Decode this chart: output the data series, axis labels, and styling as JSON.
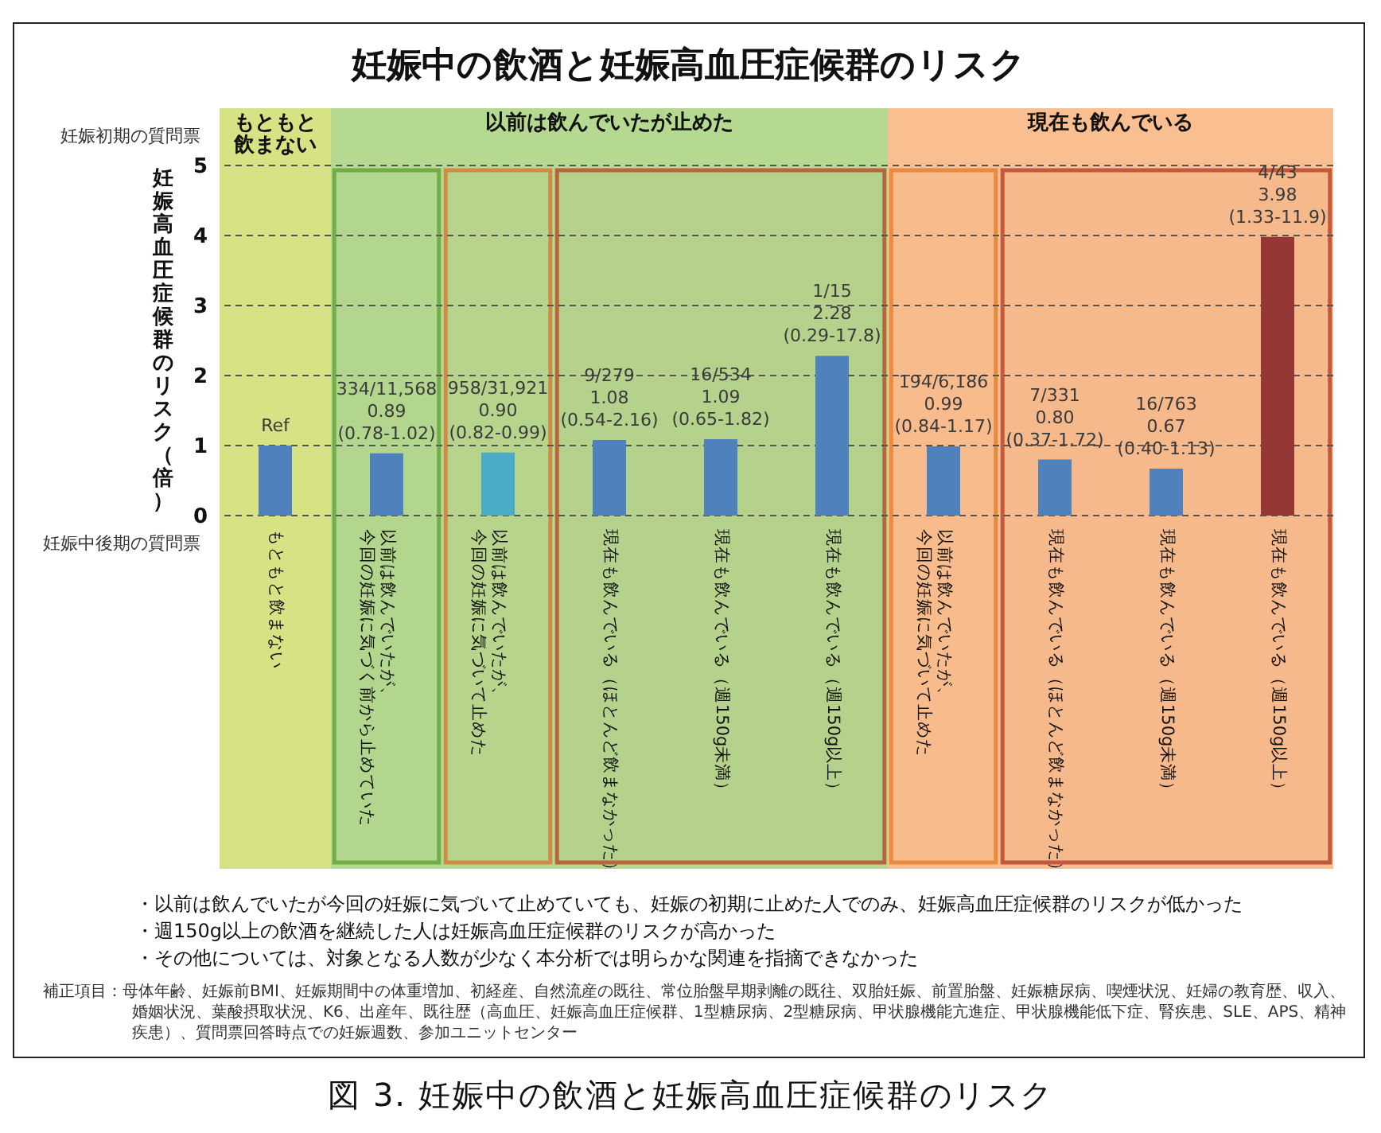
{
  "chart_data": [
    {
      "type": "bar",
      "title": "妊娠中の飲酒と妊娠高血圧症候群のリスク",
      "ylabel": "妊娠高血圧症候群のリスク（倍）",
      "categories": [
        "もともと飲まない",
        "以前は飲んでいたが、今回の妊娠に気づく前から止めていた",
        "以前は飲んでいたが、今回の妊娠に気づいて止めた",
        "現在も飲んでいる（ほとんど飲まなかった）",
        "現在も飲んでいる（週150g未満）",
        "現在も飲んでいる（週150g以上）"
      ],
      "values": [
        1,
        0.89,
        0.9,
        1.08,
        1.09,
        2.28
      ],
      "colors": [
        "#4f81bd",
        "#4f81bd",
        "#4bacc6",
        "#4f81bd",
        "#4f81bd",
        "#4f81bd"
      ],
      "value_labels": [
        "Ref",
        "334/11,568\n0.89\n(0.78-1.02)",
        "958/31,921\n0.90\n(0.82-0.99)",
        "9/279\n1.08\n(0.54-2.16)",
        "16/534\n1.09\n(0.65-1.82)",
        "1/15\n2.28\n(0.29-17.8)"
      ],
      "ylim": [
        0,
        5
      ],
      "yticks": [
        0,
        1,
        2,
        3,
        4,
        5
      ],
      "grid": "y",
      "bands": [
        {
          "axis": "x",
          "label": "もともと飲まない",
          "from": "もともと飲まない",
          "to": "もともと飲まない",
          "color": "#d7e284"
        },
        {
          "axis": "x",
          "label": "以前は飲んでいたが止めた",
          "from": "以前は飲んでいたが、今回の妊娠に気づく前から止めていた",
          "to": "現在も飲んでいる（週150g以上）",
          "color": "#b6d991"
        },
        {
          "axis": "x",
          "from": "以前は飲んでいたが、今回の妊娠に気づく前から止めていた",
          "to": "以前は飲んでいたが、今回の妊娠に気づく前から止めていた",
          "color": "#70ad47"
        },
        {
          "axis": "x",
          "from": "以前は飲んでいたが、今回の妊娠に気づいて止めた",
          "to": "以前は飲んでいたが、今回の妊娠に気づいて止めた",
          "color": "#d08b45"
        },
        {
          "axis": "x",
          "from": "現在も飲んでいる（ほとんど飲まなかった）",
          "to": "現在も飲んでいる（週150g以上）",
          "color": "#b8653b"
        }
      ],
      "annotations": [
        "妊娠初期の質問票",
        "妊娠中後期の質問票",
        "・以前は飲んでいたが今回の妊娠に気づいて止めていても、妊娠の初期に止めた人でのみ、妊娠高血圧症候群のリスクが低かった",
        "・週150g以上の飲酒を継続した人は妊娠高血圧症候群のリスクが高かった",
        "・その他については、対象となる人数が少なく本分析では明らかな関連を指摘できなかった",
        "補正項目：母体年齢、妊娠前BMI、妊娠期間中の体重増加、初経産、自然流産の既往、常位胎盤早期剥離の既往、双胎妊娠、前置胎盤、妊娠糖尿病、喫煙状況、妊婦の教育歴、収入、婚姻状況、葉酸摂取状況、K6、出産年、既往歴（高血圧、妊娠高血圧症候群、1型糖尿病、2型糖尿病、甲状腺機能亢進症、甲状腺機能低下症、腎疾患、SLE、APS、精神疾患）、質問票回答時点での妊娠週数、参加ユニットセンター",
        "図 3. 妊娠中の飲酒と妊娠高血圧症候群のリスク"
      ]
    },
    {
      "type": "bar",
      "categories": [
        "以前は飲んでいたが、今回の妊娠に気づいて止めた",
        "現在も飲んでいる（ほとんど飲まなかった）",
        "現在も飲んでいる（週150g未満）",
        "現在も飲んでいる（週150g以上）"
      ],
      "values": [
        0.99,
        0.8,
        0.67,
        3.98
      ],
      "colors": [
        "#4f81bd",
        "#4f81bd",
        "#4f81bd",
        "#953735"
      ],
      "value_labels": [
        "194/6,186\n0.99\n(0.84-1.17)",
        "7/331\n0.80\n(0.37-1.72)",
        "16/763\n0.67\n(0.40-1.13)",
        "4/43\n3.98\n(1.33-11.9)"
      ],
      "ylim": [
        0,
        5
      ],
      "yticks": [
        0,
        1,
        2,
        3,
        4,
        5
      ],
      "grid": "y",
      "tick_labels": "x",
      "bands": [
        {
          "axis": "x",
          "label": "現在も飲んでいる",
          "from": "以前は飲んでいたが、今回の妊娠に気づいて止めた",
          "to": "現在も飲んでいる（週150g以上）",
          "color": "#f9bf91"
        },
        {
          "axis": "x",
          "from": "以前は飲んでいたが、今回の妊娠に気づいて止めた",
          "to": "以前は飲んでいたが、今回の妊娠に気づいて止めた",
          "color": "#e98a3e"
        },
        {
          "axis": "x",
          "from": "現在も飲んでいる（ほとんど飲まなかった）",
          "to": "現在も飲んでいる（週150g以上）",
          "color": "#c4583c"
        }
      ]
    }
  ]
}
